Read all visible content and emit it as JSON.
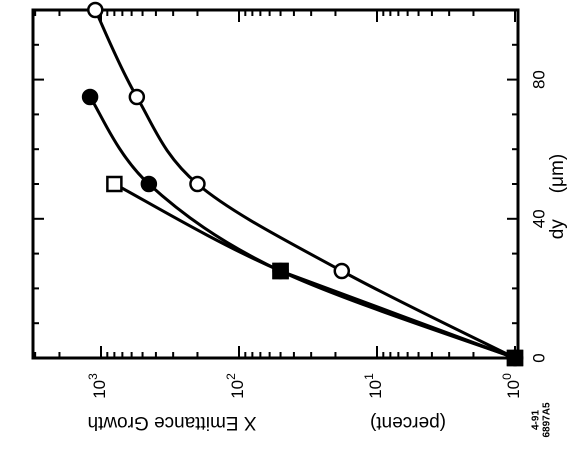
{
  "chart_data": {
    "type": "scatter",
    "orientation": "rotated 90 degrees (dy axis runs vertically at right, log axis runs horizontally at bottom)",
    "xlabel": "dy",
    "xunit": "(μm)",
    "xlim": [
      0,
      100
    ],
    "x_ticks": [
      "0",
      "40",
      "80"
    ],
    "ylabel": "X Emittance Growth",
    "yunit": "(percent)",
    "yscale": "log",
    "ylim": [
      1,
      5000
    ],
    "y_ticks": [
      {
        "base": "10",
        "exp": "0"
      },
      {
        "base": "10",
        "exp": "1"
      },
      {
        "base": "10",
        "exp": "2"
      },
      {
        "base": "10",
        "exp": "3"
      }
    ],
    "series": [
      {
        "marker": "open-circle",
        "points": [
          [
            0,
            1
          ],
          [
            25,
            18
          ],
          [
            50,
            200
          ],
          [
            75,
            550
          ],
          [
            100,
            1100
          ]
        ]
      },
      {
        "marker": "filled-circle",
        "points": [
          [
            0,
            1
          ],
          [
            25,
            50
          ],
          [
            50,
            450
          ],
          [
            75,
            1200
          ]
        ]
      },
      {
        "marker": "open-square",
        "points": [
          [
            0,
            1
          ],
          [
            25,
            50
          ],
          [
            50,
            800
          ]
        ]
      },
      {
        "marker": "filled-square",
        "points": [
          [
            0,
            1
          ],
          [
            25,
            50
          ]
        ]
      }
    ],
    "figure_id": [
      "4-91",
      "6897A5"
    ]
  }
}
